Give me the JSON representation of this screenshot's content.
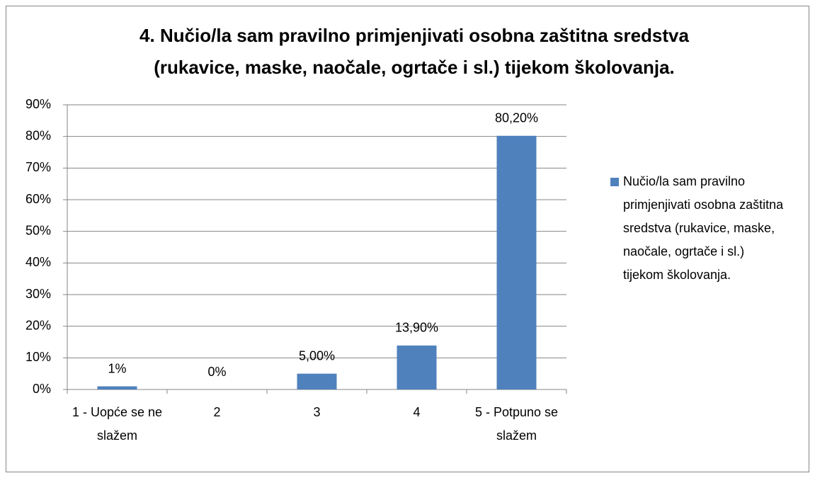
{
  "chart_data": {
    "type": "bar",
    "title": "4. Nučio/la sam pravilno primjenjivati osobna zaštitna sredstva (rukavice, maske, naočale, ogrtače i sl.) tijekom školovanja.",
    "categories": [
      "1 - Uopće se ne slažem",
      "2",
      "3",
      "4",
      "5 - Potpuno se slažem"
    ],
    "series": [
      {
        "name": "Nučio/la sam pravilno primjenjivati osobna zaštitna sredstva (rukavice, maske, naočale, ogrtače i sl.) tijekom školovanja.",
        "color": "#4f81bd",
        "values": [
          1,
          0,
          5,
          13.9,
          80.2
        ],
        "value_labels": [
          "1%",
          "0%",
          "5,00%",
          "13,90%",
          "80,20%"
        ]
      }
    ],
    "ylim": [
      0,
      90
    ],
    "yticks": [
      {
        "value": 0,
        "label": "0%"
      },
      {
        "value": 10,
        "label": "10%"
      },
      {
        "value": 20,
        "label": "20%"
      },
      {
        "value": 30,
        "label": "30%"
      },
      {
        "value": 40,
        "label": "40%"
      },
      {
        "value": 50,
        "label": "50%"
      },
      {
        "value": 60,
        "label": "60%"
      },
      {
        "value": 70,
        "label": "70%"
      },
      {
        "value": 80,
        "label": "80%"
      },
      {
        "value": 90,
        "label": "90%"
      }
    ],
    "grid": true,
    "legend": "right"
  }
}
